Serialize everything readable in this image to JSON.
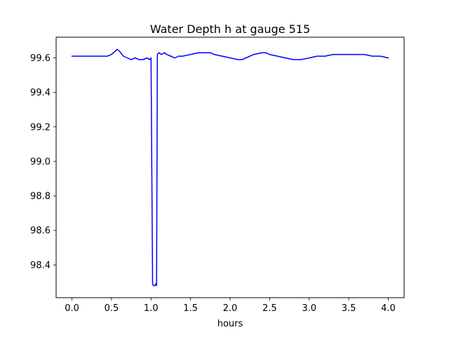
{
  "chart_data": {
    "type": "line",
    "title": "Water Depth h at gauge 515",
    "xlabel": "hours",
    "ylabel": "",
    "line_color": "#0000ff",
    "legend": "none",
    "grid": false,
    "xlim": [
      -0.2,
      4.2
    ],
    "ylim": [
      98.21,
      99.72
    ],
    "xticks": [
      0.0,
      0.5,
      1.0,
      1.5,
      2.0,
      2.5,
      3.0,
      3.5,
      4.0
    ],
    "xtick_labels": [
      "0.0",
      "0.5",
      "1.0",
      "1.5",
      "2.0",
      "2.5",
      "3.0",
      "3.5",
      "4.0"
    ],
    "yticks": [
      98.4,
      98.6,
      98.8,
      99.0,
      99.2,
      99.4,
      99.6
    ],
    "ytick_labels": [
      "98.4",
      "98.6",
      "98.8",
      "99.0",
      "99.2",
      "99.4",
      "99.6"
    ],
    "series": [
      {
        "name": "Water Depth h",
        "x": [
          0.0,
          0.1,
          0.2,
          0.3,
          0.4,
          0.45,
          0.5,
          0.55,
          0.57,
          0.6,
          0.65,
          0.7,
          0.75,
          0.8,
          0.85,
          0.9,
          0.95,
          0.98,
          1.0,
          1.02,
          1.03,
          1.05,
          1.06,
          1.07,
          1.08,
          1.1,
          1.13,
          1.17,
          1.2,
          1.25,
          1.3,
          1.35,
          1.4,
          1.5,
          1.6,
          1.7,
          1.75,
          1.8,
          1.9,
          2.0,
          2.1,
          2.15,
          2.2,
          2.3,
          2.4,
          2.45,
          2.5,
          2.6,
          2.7,
          2.8,
          2.9,
          3.0,
          3.1,
          3.2,
          3.3,
          3.4,
          3.5,
          3.6,
          3.7,
          3.8,
          3.9,
          4.0
        ],
        "y": [
          99.61,
          99.61,
          99.61,
          99.61,
          99.61,
          99.61,
          99.62,
          99.64,
          99.65,
          99.64,
          99.61,
          99.6,
          99.59,
          99.6,
          99.59,
          99.59,
          99.6,
          99.59,
          99.6,
          98.29,
          98.28,
          98.28,
          98.29,
          98.28,
          99.62,
          99.63,
          99.62,
          99.63,
          99.62,
          99.61,
          99.6,
          99.61,
          99.61,
          99.62,
          99.63,
          99.63,
          99.63,
          99.62,
          99.61,
          99.6,
          99.59,
          99.59,
          99.6,
          99.62,
          99.63,
          99.63,
          99.62,
          99.61,
          99.6,
          99.59,
          99.59,
          99.6,
          99.61,
          99.61,
          99.62,
          99.62,
          99.62,
          99.62,
          99.62,
          99.61,
          99.61,
          99.6
        ]
      }
    ]
  }
}
